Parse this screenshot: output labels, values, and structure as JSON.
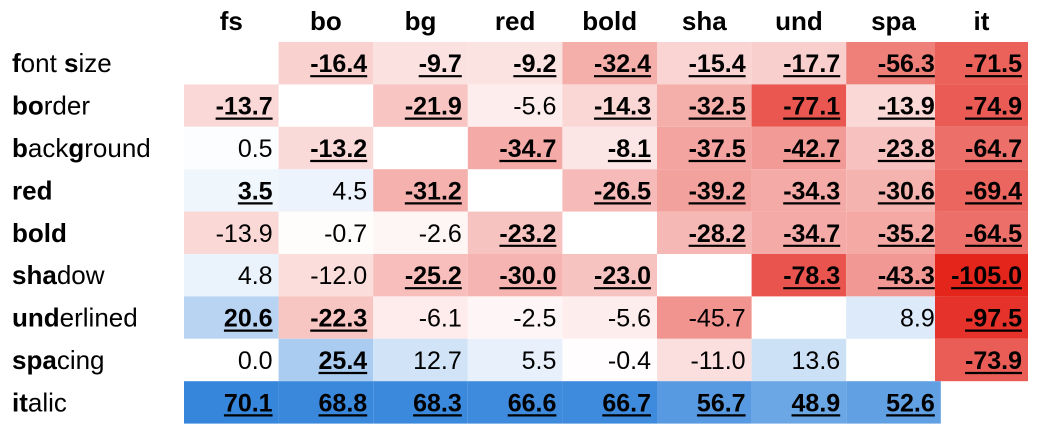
{
  "chart_data": {
    "type": "heatmap",
    "columns": [
      "fs",
      "bo",
      "bg",
      "red",
      "bold",
      "sha",
      "und",
      "spa",
      "it"
    ],
    "rows": [
      {
        "label_bold": "f",
        "label_rest": "ont ",
        "label_bold2": "s",
        "label_rest2": "ize"
      },
      {
        "label_bold": "bo",
        "label_rest": "rder",
        "label_bold2": "",
        "label_rest2": ""
      },
      {
        "label_bold": "b",
        "label_rest": "ack",
        "label_bold2": "g",
        "label_rest2": "round"
      },
      {
        "label_bold": "red",
        "label_rest": "",
        "label_bold2": "",
        "label_rest2": ""
      },
      {
        "label_bold": "bold",
        "label_rest": "",
        "label_bold2": "",
        "label_rest2": ""
      },
      {
        "label_bold": "sha",
        "label_rest": "dow",
        "label_bold2": "",
        "label_rest2": ""
      },
      {
        "label_bold": "und",
        "label_rest": "erlined",
        "label_bold2": "",
        "label_rest2": ""
      },
      {
        "label_bold": "spa",
        "label_rest": "cing",
        "label_bold2": "",
        "label_rest2": ""
      },
      {
        "label_bold": "it",
        "label_rest": "alic",
        "label_bold2": "",
        "label_rest2": ""
      }
    ],
    "values": [
      [
        null,
        -16.4,
        -9.7,
        -9.2,
        -32.4,
        -15.4,
        -17.7,
        -56.3,
        -71.5
      ],
      [
        -13.7,
        null,
        -21.9,
        -5.6,
        -14.3,
        -32.5,
        -77.1,
        -13.9,
        -74.9
      ],
      [
        0.5,
        -13.2,
        null,
        -34.7,
        -8.1,
        -37.5,
        -42.7,
        -23.8,
        -64.7
      ],
      [
        3.5,
        4.5,
        -31.2,
        null,
        -26.5,
        -39.2,
        -34.3,
        -30.6,
        -69.4
      ],
      [
        -13.9,
        -0.7,
        -2.6,
        -23.2,
        null,
        -28.2,
        -34.7,
        -35.2,
        -64.5
      ],
      [
        4.8,
        -12.0,
        -25.2,
        -30.0,
        -23.0,
        null,
        -78.3,
        -43.3,
        -105.0
      ],
      [
        20.6,
        -22.3,
        -6.1,
        -2.5,
        -5.6,
        -45.7,
        null,
        8.9,
        -97.5
      ],
      [
        0.0,
        25.4,
        12.7,
        5.5,
        -0.4,
        -11.0,
        13.6,
        null,
        -73.9
      ],
      [
        70.1,
        68.8,
        68.3,
        66.6,
        66.7,
        56.7,
        48.9,
        52.6,
        null
      ]
    ],
    "display": [
      [
        null,
        "-16.4",
        "-9.7",
        "-9.2",
        "-32.4",
        "-15.4",
        "-17.7",
        "-56.3",
        "-71.5"
      ],
      [
        "-13.7",
        null,
        "-21.9",
        "-5.6",
        "-14.3",
        "-32.5",
        "-77.1",
        "-13.9",
        "-74.9"
      ],
      [
        "0.5",
        "-13.2",
        null,
        "-34.7",
        "-8.1",
        "-37.5",
        "-42.7",
        "-23.8",
        "-64.7"
      ],
      [
        "3.5",
        "4.5",
        "-31.2",
        null,
        "-26.5",
        "-39.2",
        "-34.3",
        "-30.6",
        "-69.4"
      ],
      [
        "-13.9",
        "-0.7",
        "-2.6",
        "-23.2",
        null,
        "-28.2",
        "-34.7",
        "-35.2",
        "-64.5"
      ],
      [
        "4.8",
        "-12.0",
        "-25.2",
        "-30.0",
        "-23.0",
        null,
        "-78.3",
        "-43.3",
        "-105.0"
      ],
      [
        "20.6",
        "-22.3",
        "-6.1",
        "-2.5",
        "-5.6",
        "-45.7",
        null,
        "8.9",
        "-97.5"
      ],
      [
        "0.0",
        "25.4",
        "12.7",
        "5.5",
        "-0.4",
        "-11.0",
        "13.6",
        null,
        "-73.9"
      ],
      [
        "70.1",
        "68.8",
        "68.3",
        "66.6",
        "66.7",
        "56.7",
        "48.9",
        "52.6",
        null
      ]
    ],
    "emphasized": [
      [
        false,
        true,
        true,
        true,
        true,
        true,
        true,
        true,
        true
      ],
      [
        true,
        false,
        true,
        false,
        true,
        true,
        true,
        true,
        true
      ],
      [
        false,
        true,
        false,
        true,
        true,
        true,
        true,
        true,
        true
      ],
      [
        true,
        false,
        true,
        false,
        true,
        true,
        true,
        true,
        true
      ],
      [
        false,
        false,
        false,
        true,
        false,
        true,
        true,
        true,
        true
      ],
      [
        false,
        false,
        true,
        true,
        true,
        false,
        true,
        true,
        true
      ],
      [
        true,
        true,
        false,
        false,
        false,
        false,
        false,
        false,
        true
      ],
      [
        false,
        true,
        false,
        false,
        false,
        false,
        false,
        false,
        true
      ],
      [
        true,
        true,
        true,
        true,
        true,
        true,
        true,
        true,
        false
      ]
    ],
    "colors": {
      "negative_max": "#e3251c",
      "positive_max": "#2a7fd9",
      "neutral": "#ffffff"
    },
    "color_scale": {
      "negative_limit": -105,
      "positive_limit": 75
    }
  }
}
